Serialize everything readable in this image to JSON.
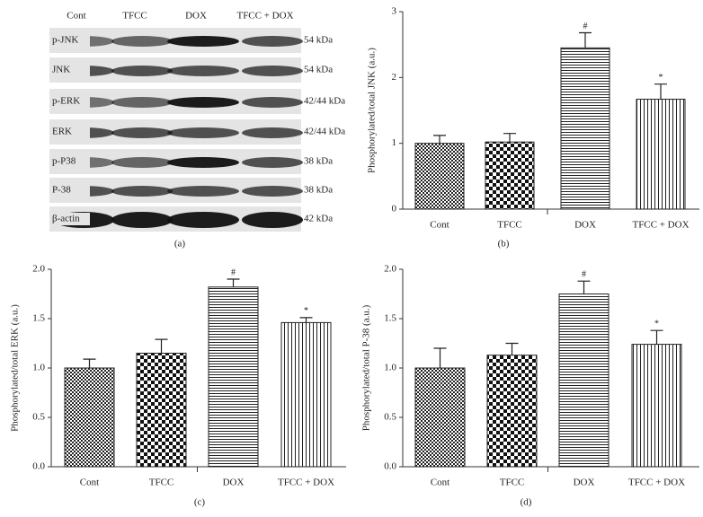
{
  "blot": {
    "lanes": [
      "Cont",
      "TFCC",
      "DOX",
      "TFCC + DOX"
    ],
    "rows": [
      {
        "protein": "p-JNK",
        "size": "54 kDa"
      },
      {
        "protein": "JNK",
        "size": "54 kDa"
      },
      {
        "protein": "p-ERK",
        "size": "42/44 kDa"
      },
      {
        "protein": "ERK",
        "size": "42/44 kDa"
      },
      {
        "protein": "p-P38",
        "size": "38 kDa"
      },
      {
        "protein": "P-38",
        "size": "38 kDa"
      },
      {
        "protein": "β-actin",
        "size": "42 kDa"
      }
    ],
    "caption": "(a)"
  },
  "chart_data": [
    {
      "type": "bar",
      "caption": "(b)",
      "ylabel": "Phosphorylated/total JNK (a.u.)",
      "categories": [
        "Cont",
        "TFCC",
        "DOX",
        "TFCC + DOX"
      ],
      "values": [
        1.0,
        1.02,
        2.45,
        1.67
      ],
      "errors": [
        0.12,
        0.13,
        0.23,
        0.23
      ],
      "markers": [
        null,
        null,
        "#",
        "*"
      ],
      "ylim": [
        0,
        3
      ],
      "yticks": [
        0,
        1,
        2,
        3
      ]
    },
    {
      "type": "bar",
      "caption": "(c)",
      "ylabel": "Phosphorylated/total ERK (a.u.)",
      "categories": [
        "Cont",
        "TFCC",
        "DOX",
        "TFCC + DOX"
      ],
      "values": [
        1.0,
        1.15,
        1.82,
        1.46
      ],
      "errors": [
        0.09,
        0.14,
        0.08,
        0.05
      ],
      "markers": [
        null,
        null,
        "#",
        "*"
      ],
      "ylim": [
        0,
        2
      ],
      "yticks": [
        {
          "value": 0,
          "label": "0.0"
        },
        0.5,
        {
          "value": 1,
          "label": "1.0"
        },
        1.5,
        {
          "value": 2,
          "label": "2.0"
        }
      ]
    },
    {
      "type": "bar",
      "caption": "(d)",
      "ylabel": "Phosphorylated/total P-38 (a.u.)",
      "categories": [
        "Cont",
        "TFCC",
        "DOX",
        "TFCC + DOX"
      ],
      "values": [
        1.0,
        1.13,
        1.75,
        1.24
      ],
      "errors": [
        0.2,
        0.12,
        0.13,
        0.14
      ],
      "markers": [
        null,
        null,
        "#",
        "*"
      ],
      "ylim": [
        0,
        2
      ],
      "yticks": [
        {
          "value": 0,
          "label": "0.0"
        },
        0.5,
        {
          "value": 1,
          "label": "1.0"
        },
        1.5,
        {
          "value": 2,
          "label": "2.0"
        }
      ]
    }
  ]
}
